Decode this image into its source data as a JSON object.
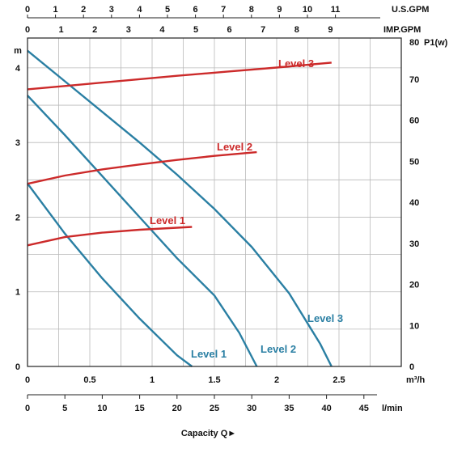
{
  "chart_data": {
    "type": "line",
    "grid": true,
    "x_axis": {
      "label": "m³/h",
      "ticks": [
        "0",
        "0.5",
        "1",
        "1.5",
        "2",
        "2.5"
      ],
      "range": [
        0,
        3
      ]
    },
    "x_axis_lmin": {
      "label": "l/min",
      "ticks": [
        "0",
        "5",
        "10",
        "15",
        "20",
        "25",
        "30",
        "35",
        "40",
        "45"
      ],
      "range": [
        0,
        50
      ]
    },
    "x_axis_usgpm": {
      "label": "U.S.GPM",
      "ticks": [
        "0",
        "1",
        "2",
        "3",
        "4",
        "5",
        "6",
        "7",
        "8",
        "9",
        "10",
        "11"
      ]
    },
    "x_axis_impgpm": {
      "label": "IMP.GPM",
      "ticks": [
        "0",
        "1",
        "2",
        "3",
        "4",
        "5",
        "6",
        "7",
        "8",
        "9"
      ]
    },
    "x_caption": "Capacity Q►",
    "y_axis_left": {
      "label": "m",
      "ticks": [
        "0",
        "1",
        "2",
        "3",
        "4"
      ],
      "range": [
        0,
        4.4
      ]
    },
    "y_axis_right": {
      "label": "P1(w)",
      "top_label": "80",
      "ticks": [
        "0",
        "10",
        "20",
        "30",
        "40",
        "50",
        "60",
        "70"
      ],
      "range": [
        0,
        80
      ]
    },
    "head_series": [
      {
        "name": "Level 1",
        "color": "#2a7fa3",
        "x": [
          0,
          0.3,
          0.6,
          0.9,
          1.2,
          1.32
        ],
        "y": [
          2.45,
          1.78,
          1.18,
          0.64,
          0.15,
          0.0
        ]
      },
      {
        "name": "Level 2",
        "color": "#2a7fa3",
        "x": [
          0,
          0.3,
          0.6,
          0.9,
          1.2,
          1.5,
          1.7,
          1.84
        ],
        "y": [
          3.63,
          3.1,
          2.55,
          2.0,
          1.45,
          0.95,
          0.45,
          0.0
        ]
      },
      {
        "name": "Level 3",
        "color": "#2a7fa3",
        "x": [
          0,
          0.3,
          0.6,
          0.9,
          1.2,
          1.5,
          1.8,
          2.1,
          2.35,
          2.44
        ],
        "y": [
          4.23,
          3.82,
          3.41,
          3.0,
          2.57,
          2.11,
          1.6,
          0.98,
          0.3,
          0.0
        ]
      }
    ],
    "power_series": [
      {
        "name": "Level 1",
        "color": "#cc2a2a",
        "x": [
          0,
          0.3,
          0.6,
          0.9,
          1.2,
          1.32
        ],
        "y": [
          29.5,
          31.5,
          32.6,
          33.3,
          33.8,
          34.0
        ]
      },
      {
        "name": "Level 2",
        "color": "#cc2a2a",
        "x": [
          0,
          0.3,
          0.6,
          0.9,
          1.2,
          1.5,
          1.84
        ],
        "y": [
          44.5,
          46.5,
          48.0,
          49.2,
          50.3,
          51.3,
          52.2
        ]
      },
      {
        "name": "Level 3",
        "color": "#cc2a2a",
        "x": [
          0,
          0.4,
          0.8,
          1.2,
          1.6,
          2.0,
          2.44
        ],
        "y": [
          67.5,
          68.6,
          69.7,
          70.8,
          71.8,
          72.8,
          74.0
        ]
      }
    ]
  }
}
